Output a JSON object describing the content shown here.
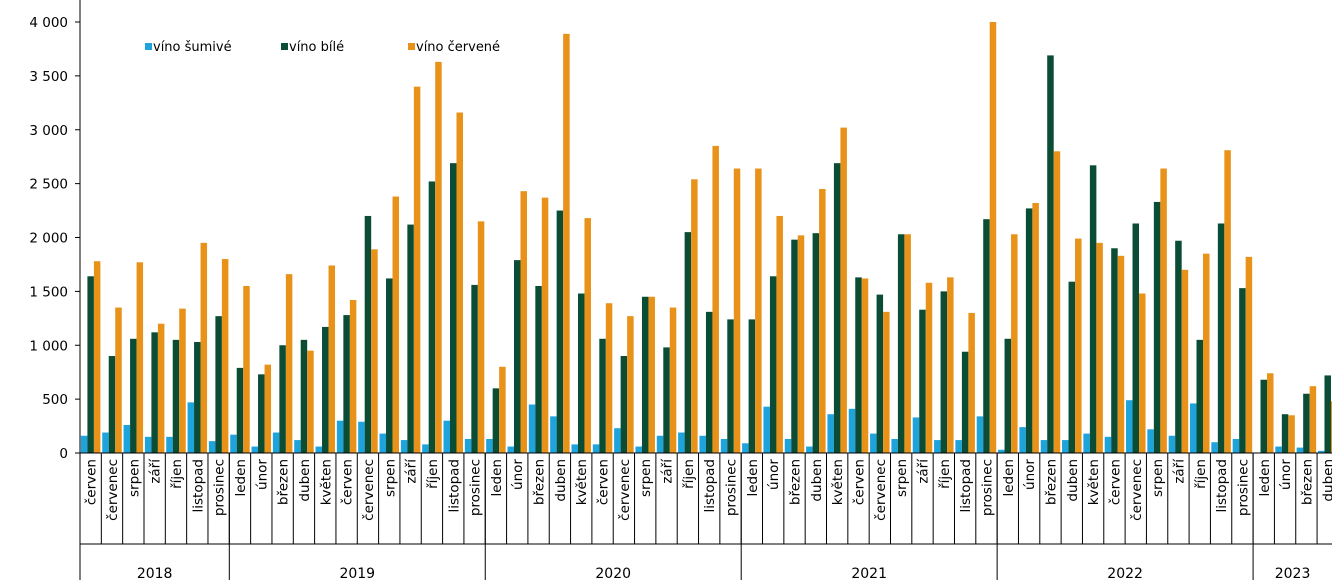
{
  "chart_data": {
    "type": "bar",
    "title": "",
    "xlabel": "",
    "ylabel": "",
    "ylim": [
      0,
      4000
    ],
    "y_ticks": [
      "0",
      "500",
      "1 000",
      "1 500",
      "2 000",
      "2 500",
      "3 000",
      "3 500",
      "4 000"
    ],
    "grid": false,
    "legend_position": "top-left",
    "colors": {
      "sparkling": "#1fa3dc",
      "white": "#0b4d34",
      "red": "#e8921a",
      "axis": "#000000"
    },
    "years": [
      {
        "label": "2018",
        "count": 7
      },
      {
        "label": "2019",
        "count": 12
      },
      {
        "label": "2020",
        "count": 12
      },
      {
        "label": "2021",
        "count": 12
      },
      {
        "label": "2022",
        "count": 12
      },
      {
        "label": "2023",
        "count": 4
      }
    ],
    "categories": [
      "červen",
      "červenec",
      "srpen",
      "září",
      "říjen",
      "listopad",
      "prosinec",
      "leden",
      "únor",
      "březen",
      "duben",
      "květen",
      "červen",
      "červenec",
      "srpen",
      "září",
      "říjen",
      "listopad",
      "prosinec",
      "leden",
      "únor",
      "březen",
      "duben",
      "květen",
      "červen",
      "červenec",
      "srpen",
      "září",
      "říjen",
      "listopad",
      "prosinec",
      "leden",
      "únor",
      "březen",
      "duben",
      "květen",
      "červen",
      "červenec",
      "srpen",
      "září",
      "říjen",
      "listopad",
      "prosinec",
      "leden",
      "únor",
      "březen",
      "duben",
      "květen",
      "červen",
      "červenec",
      "srpen",
      "září",
      "říjen",
      "listopad",
      "prosinec",
      "leden",
      "únor",
      "březen",
      "duben"
    ],
    "series": [
      {
        "name": "víno šumivé",
        "values": [
          160,
          190,
          260,
          150,
          150,
          470,
          110,
          170,
          60,
          190,
          120,
          60,
          300,
          290,
          180,
          120,
          80,
          300,
          130,
          130,
          60,
          450,
          340,
          80,
          80,
          230,
          60,
          160,
          190,
          160,
          130,
          90,
          430,
          130,
          60,
          360,
          410,
          180,
          130,
          330,
          120,
          120,
          340,
          30,
          240,
          120,
          120,
          180,
          150,
          490,
          220,
          160,
          460,
          100,
          130,
          0,
          60,
          50,
          20
        ]
      },
      {
        "name": "víno bílé",
        "values": [
          1640,
          900,
          1060,
          1120,
          1050,
          1030,
          1270,
          790,
          730,
          1000,
          1050,
          1170,
          1280,
          2200,
          1620,
          2120,
          2520,
          2690,
          1560,
          600,
          1790,
          1550,
          2250,
          1480,
          1060,
          900,
          1450,
          980,
          2050,
          1310,
          1240,
          1240,
          1640,
          1980,
          2040,
          2690,
          1630,
          1470,
          2030,
          1330,
          1500,
          940,
          2170,
          1060,
          2270,
          3690,
          1590,
          2670,
          1900,
          2130,
          2330,
          1970,
          1050,
          2130,
          1530,
          680,
          360,
          550,
          720
        ]
      },
      {
        "name": "víno červené",
        "values": [
          1780,
          1350,
          1770,
          1200,
          1340,
          1950,
          1800,
          1550,
          820,
          1660,
          950,
          1740,
          1420,
          1890,
          2380,
          3400,
          3630,
          3160,
          2150,
          800,
          2430,
          2370,
          3890,
          2180,
          1390,
          1270,
          1450,
          1350,
          2540,
          2850,
          2640,
          2640,
          2200,
          2020,
          2450,
          3020,
          1620,
          1310,
          2030,
          1580,
          1630,
          1300,
          4000,
          2030,
          2320,
          2800,
          1990,
          1950,
          1830,
          1480,
          2640,
          1700,
          1850,
          2810,
          1820,
          740,
          350,
          620,
          480
        ]
      }
    ]
  }
}
